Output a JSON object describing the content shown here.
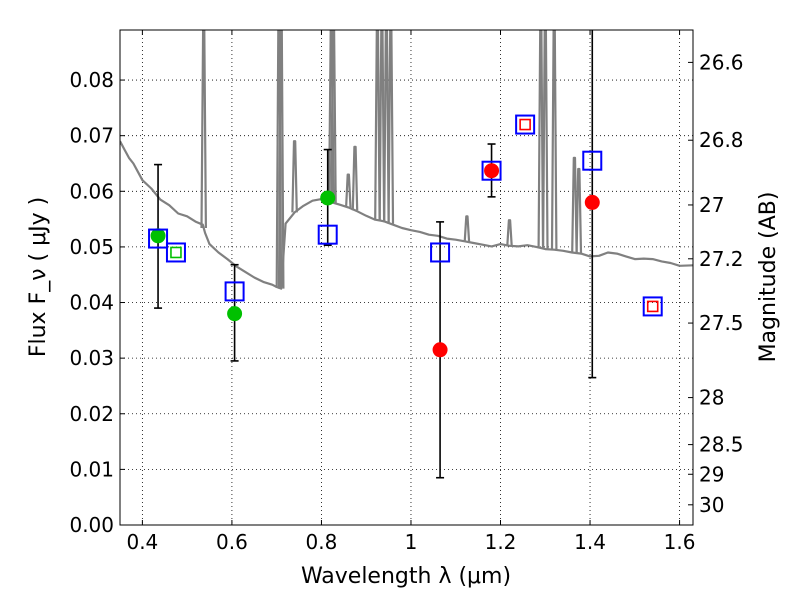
{
  "chart_data": {
    "type": "scatter",
    "xlabel": "Wavelength  λ (μm)",
    "ylabel": "Flux  F_ν ( μJy )",
    "y2label": "Magnitude (AB)",
    "xlim": [
      0.35,
      1.63
    ],
    "ylim": [
      0.0,
      0.089
    ],
    "grid": true,
    "x_ticks": [
      0.4,
      0.6,
      0.8,
      1.0,
      1.2,
      1.4,
      1.6
    ],
    "x_tick_labels": [
      "0.4",
      "0.6",
      "0.8",
      "1",
      "1.2",
      "1.4",
      "1.6"
    ],
    "y_ticks": [
      0.0,
      0.01,
      0.02,
      0.03,
      0.04,
      0.05,
      0.06,
      0.07,
      0.08
    ],
    "y_tick_labels": [
      "0.00",
      "0.01",
      "0.02",
      "0.03",
      "0.04",
      "0.05",
      "0.06",
      "0.07",
      "0.08"
    ],
    "mag_ticks": [
      26.6,
      26.8,
      27.0,
      27.2,
      27.5,
      28.0,
      28.5,
      29.0,
      30.0
    ],
    "mag_tick_labels": [
      "26.6",
      "26.8",
      "27",
      "27.2",
      "27.5",
      "28",
      "28.5",
      "29",
      "30"
    ],
    "series": [
      {
        "kind": "sed_template",
        "color": "#808080",
        "x": [
          0.35,
          0.36,
          0.37,
          0.38,
          0.39,
          0.4,
          0.42,
          0.44,
          0.46,
          0.48,
          0.5,
          0.52,
          0.535,
          0.54,
          0.55,
          0.57,
          0.59,
          0.61,
          0.63,
          0.65,
          0.67,
          0.69,
          0.7,
          0.71,
          0.72,
          0.74,
          0.76,
          0.78,
          0.8,
          0.82,
          0.84,
          0.86,
          0.88,
          0.9,
          0.92,
          0.94,
          0.96,
          0.98,
          1.0,
          1.02,
          1.04,
          1.06,
          1.08,
          1.1,
          1.12,
          1.14,
          1.16,
          1.18,
          1.2,
          1.22,
          1.24,
          1.26,
          1.28,
          1.3,
          1.32,
          1.34,
          1.36,
          1.38,
          1.4,
          1.42,
          1.44,
          1.46,
          1.48,
          1.5,
          1.52,
          1.54,
          1.56,
          1.58,
          1.6,
          1.63
        ],
        "y": [
          0.069,
          0.0675,
          0.066,
          0.065,
          0.0635,
          0.062,
          0.0605,
          0.0585,
          0.0575,
          0.056,
          0.0555,
          0.0545,
          0.054,
          0.0525,
          0.0505,
          0.049,
          0.0478,
          0.0465,
          0.0455,
          0.0445,
          0.0437,
          0.0432,
          0.0428,
          0.0425,
          0.0542,
          0.0562,
          0.0574,
          0.0583,
          0.0586,
          0.0581,
          0.0576,
          0.0571,
          0.0564,
          0.0556,
          0.0549,
          0.0546,
          0.054,
          0.0534,
          0.053,
          0.0527,
          0.0522,
          0.052,
          0.0515,
          0.0513,
          0.051,
          0.0507,
          0.0504,
          0.0501,
          0.0505,
          0.0502,
          0.0501,
          0.0503,
          0.05,
          0.0496,
          0.0495,
          0.0493,
          0.049,
          0.0488,
          0.0483,
          0.0484,
          0.049,
          0.0488,
          0.0483,
          0.0478,
          0.0479,
          0.0478,
          0.0474,
          0.0471,
          0.0466,
          0.0467
        ],
        "emission_lines": [
          {
            "x": 0.537,
            "peak": 0.089
          },
          {
            "x": 0.705,
            "peak": 0.089
          },
          {
            "x": 0.71,
            "peak": 0.089
          },
          {
            "x": 0.74,
            "peak": 0.069
          },
          {
            "x": 0.822,
            "peak": 0.089
          },
          {
            "x": 0.827,
            "peak": 0.089
          },
          {
            "x": 0.86,
            "peak": 0.063
          },
          {
            "x": 0.875,
            "peak": 0.068
          },
          {
            "x": 0.925,
            "peak": 0.089
          },
          {
            "x": 0.935,
            "peak": 0.089
          },
          {
            "x": 0.945,
            "peak": 0.089
          },
          {
            "x": 0.955,
            "peak": 0.089
          },
          {
            "x": 1.125,
            "peak": 0.0555
          },
          {
            "x": 1.22,
            "peak": 0.0548
          },
          {
            "x": 1.29,
            "peak": 0.089
          },
          {
            "x": 1.3,
            "peak": 0.089
          },
          {
            "x": 1.32,
            "peak": 0.089
          },
          {
            "x": 1.365,
            "peak": 0.066
          },
          {
            "x": 1.375,
            "peak": 0.064
          }
        ]
      },
      {
        "kind": "model_photometry",
        "marker": "open-square",
        "color": "#0000ff",
        "points": [
          {
            "x": 0.435,
            "y": 0.0515
          },
          {
            "x": 0.475,
            "y": 0.049
          },
          {
            "x": 0.606,
            "y": 0.042
          },
          {
            "x": 0.814,
            "y": 0.0522
          },
          {
            "x": 1.065,
            "y": 0.049
          },
          {
            "x": 1.18,
            "y": 0.0637
          },
          {
            "x": 1.255,
            "y": 0.072
          },
          {
            "x": 1.405,
            "y": 0.0655
          },
          {
            "x": 1.54,
            "y": 0.0393
          }
        ]
      },
      {
        "kind": "observed_upper_limits",
        "marker": "small-open-square",
        "points": [
          {
            "x": 0.475,
            "y": 0.049,
            "color": "#00c000"
          },
          {
            "x": 1.255,
            "y": 0.072,
            "color": "#ff0000"
          },
          {
            "x": 1.54,
            "y": 0.0393,
            "color": "#ff0000"
          }
        ]
      },
      {
        "kind": "observed_detections",
        "marker": "filled-circle",
        "points": [
          {
            "x": 0.435,
            "y": 0.052,
            "yerr_low": 0.039,
            "yerr_high": 0.0648,
            "color": "#00c000"
          },
          {
            "x": 0.606,
            "y": 0.038,
            "yerr_low": 0.0295,
            "yerr_high": 0.0468,
            "color": "#00c000"
          },
          {
            "x": 0.814,
            "y": 0.0588,
            "yerr_low": 0.0503,
            "yerr_high": 0.0675,
            "color": "#00c000"
          },
          {
            "x": 1.065,
            "y": 0.0315,
            "yerr_low": 0.0085,
            "yerr_high": 0.0545,
            "color": "#ff0000"
          },
          {
            "x": 1.18,
            "y": 0.0637,
            "yerr_low": 0.059,
            "yerr_high": 0.0685,
            "color": "#ff0000"
          },
          {
            "x": 1.405,
            "y": 0.058,
            "yerr_low": 0.0265,
            "yerr_high": 0.089,
            "color": "#ff0000"
          }
        ]
      }
    ]
  }
}
